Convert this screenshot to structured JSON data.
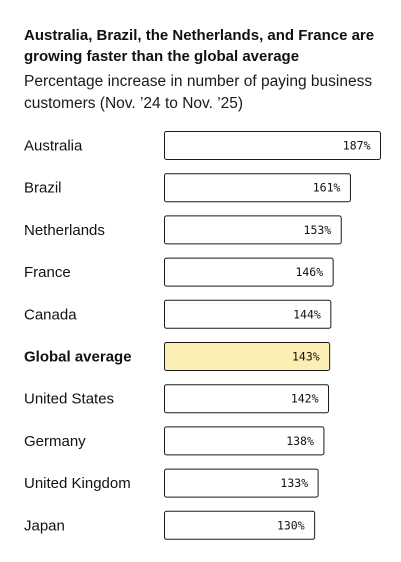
{
  "chart_data": {
    "type": "bar",
    "orientation": "horizontal",
    "title": "Australia, Brazil, the Netherlands, and France are growing faster than the global average",
    "subtitle": "Percentage increase in number of paying business customers (Nov. ’24 to Nov. ’25)",
    "categories": [
      "Australia",
      "Brazil",
      "Netherlands",
      "France",
      "Canada",
      "Global average",
      "United States",
      "Germany",
      "United Kingdom",
      "Japan"
    ],
    "values": [
      187,
      161,
      153,
      146,
      144,
      143,
      142,
      138,
      133,
      130
    ],
    "value_labels": [
      "187%",
      "161%",
      "153%",
      "146%",
      "144%",
      "143%",
      "142%",
      "138%",
      "133%",
      "130%"
    ],
    "highlight": "Global average",
    "colors": {
      "bar": "#ffffff",
      "highlight": "#fcefb4",
      "border": "#1a1a1a"
    }
  }
}
